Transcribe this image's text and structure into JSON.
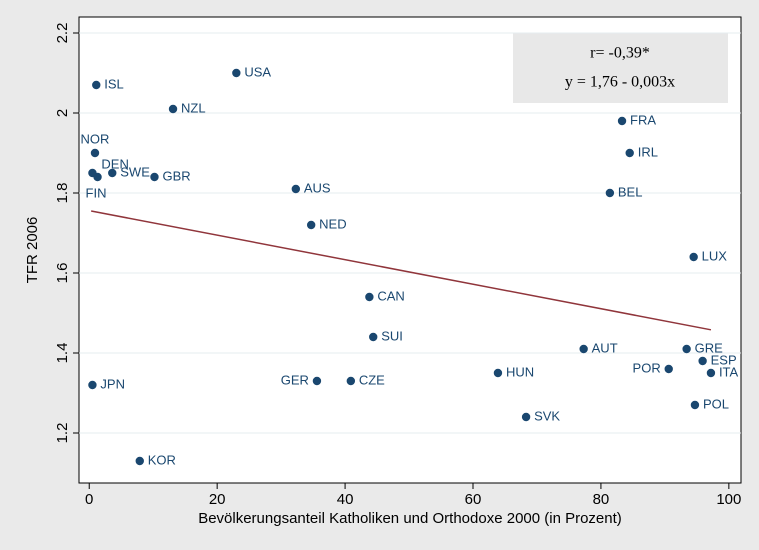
{
  "chart_data": {
    "type": "scatter",
    "x_label": "Bevölkerungsanteil Katholiken und Orthodoxe 2000 (in Prozent)",
    "y_label": "TFR 2006",
    "xlim": [
      -1.6,
      101.9
    ],
    "ylim": [
      1.075,
      2.24
    ],
    "xticks": [
      0,
      20,
      40,
      60,
      80,
      100
    ],
    "yticks": [
      1.2,
      1.4,
      1.6,
      1.8,
      2,
      2.2
    ],
    "color": "#1a476f",
    "labels": [
      "ISL",
      "USA",
      "NZL",
      "NOR",
      "DEN",
      "SWE",
      "FIN",
      "GBR",
      "AUS",
      "NED",
      "FRA",
      "IRL",
      "BEL",
      "LUX",
      "CAN",
      "SUI",
      "AUT",
      "GRE",
      "ESP",
      "POR",
      "ITA",
      "HUN",
      "GER",
      "CZE",
      "JPN",
      "POL",
      "SVK",
      "KOR"
    ],
    "x": [
      1.1,
      23,
      13.1,
      0.9,
      0.5,
      3.6,
      1.3,
      10.2,
      32.3,
      34.7,
      83.3,
      84.5,
      81.4,
      94.5,
      43.8,
      44.4,
      77.3,
      93.4,
      95.9,
      90.6,
      97.2,
      63.9,
      35.6,
      40.9,
      0.5,
      94.7,
      68.3,
      7.9
    ],
    "values": [
      2.07,
      2.1,
      2.01,
      1.9,
      1.85,
      1.85,
      1.84,
      1.84,
      1.81,
      1.72,
      1.98,
      1.9,
      1.8,
      1.64,
      1.54,
      1.44,
      1.41,
      1.41,
      1.38,
      1.36,
      1.35,
      1.35,
      1.33,
      1.33,
      1.32,
      1.27,
      1.24,
      1.13
    ],
    "fit": {
      "color": "#90353b",
      "x": [
        0.3,
        97.2
      ],
      "values": [
        1.755,
        1.458
      ]
    },
    "annotations": [
      "r= -0,39*",
      "y = 1,76 - 0,003x"
    ]
  }
}
